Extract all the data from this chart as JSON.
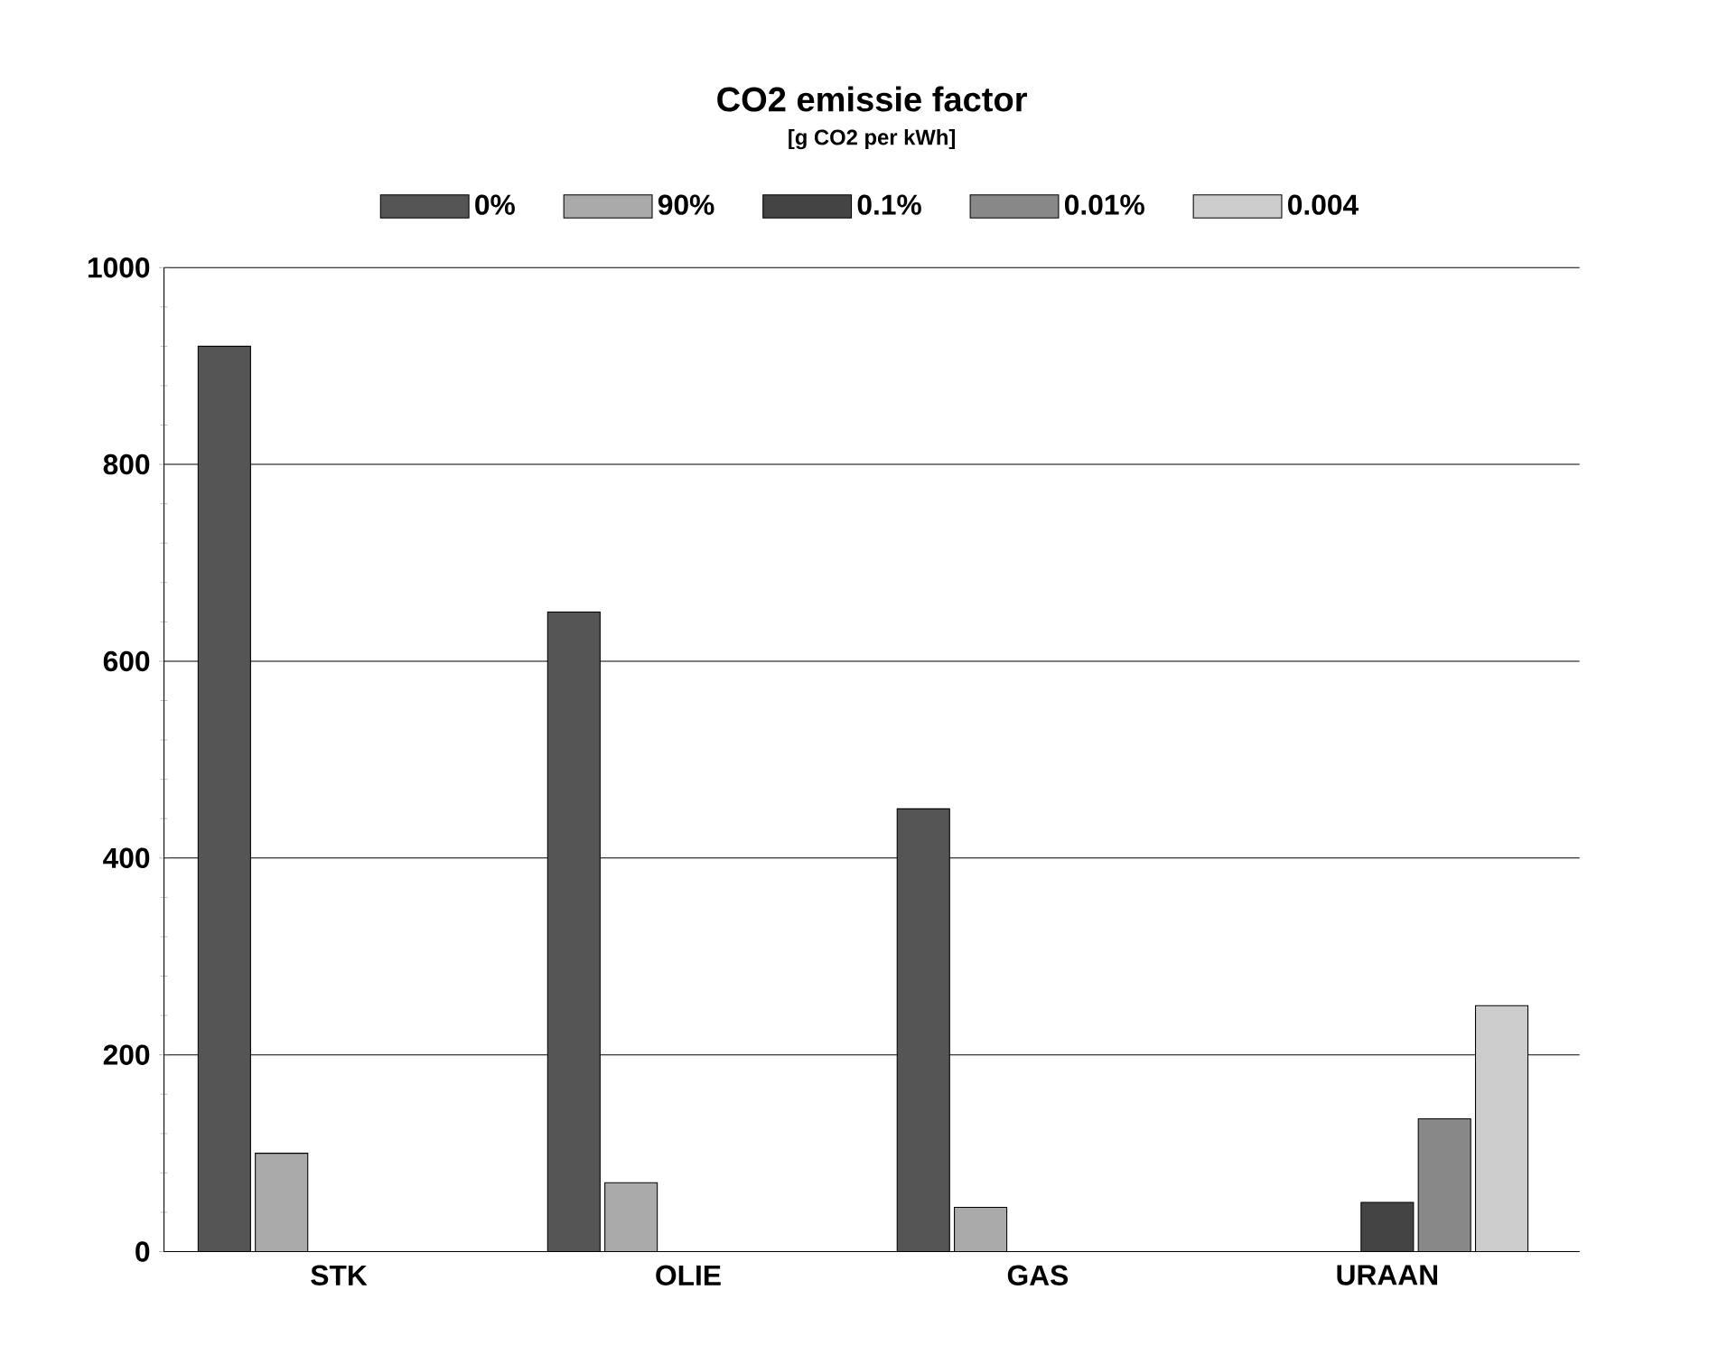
{
  "chart_data": {
    "type": "bar",
    "title": "CO2  emissie  factor",
    "subtitle": "[g  CO2  per  kWh]",
    "categories": [
      "STK",
      "OLIE",
      "GAS",
      "URAAN"
    ],
    "series": [
      {
        "name": "0%",
        "color": "#555555",
        "values": [
          920,
          650,
          450,
          null
        ]
      },
      {
        "name": "90%",
        "color": "#aaaaaa",
        "values": [
          100,
          70,
          45,
          null
        ]
      },
      {
        "name": "0.1%",
        "color": "#444444",
        "values": [
          null,
          null,
          null,
          50
        ]
      },
      {
        "name": "0.01%",
        "color": "#888888",
        "values": [
          null,
          null,
          null,
          135
        ]
      },
      {
        "name": "0.004",
        "color": "#cccccc",
        "values": [
          null,
          null,
          null,
          250
        ]
      }
    ],
    "ylim": [
      0,
      1000
    ],
    "yticks": [
      0,
      200,
      400,
      600,
      800,
      1000
    ],
    "grid": "y",
    "legend": "top"
  }
}
